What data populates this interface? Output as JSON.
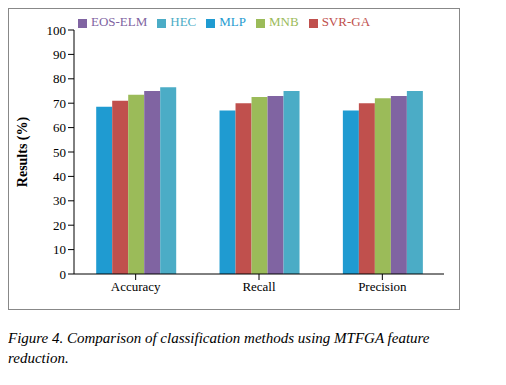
{
  "chart_data": {
    "type": "bar",
    "title": "Figure 4. Comparison of classification methods using MTFGA feature reduction.",
    "y_label": "Results (%)",
    "categories": [
      "Accuracy",
      "Recall",
      "Precision"
    ],
    "series": [
      {
        "name": "MLP",
        "color": "#1f9bd1",
        "values": [
          68.5,
          67,
          67
        ]
      },
      {
        "name": "SVR-GA",
        "color": "#c0504d",
        "values": [
          71,
          70,
          70
        ]
      },
      {
        "name": "MNB",
        "color": "#9bbb59",
        "values": [
          73.5,
          72.5,
          72
        ]
      },
      {
        "name": "EOS-ELM",
        "color": "#8064a2",
        "values": [
          75,
          73,
          73
        ]
      },
      {
        "name": "HEC",
        "color": "#4bacc6",
        "values": [
          76.5,
          75,
          75
        ]
      }
    ],
    "ylim": [
      0,
      100
    ],
    "yticks": [
      0,
      10,
      20,
      30,
      40,
      50,
      60,
      70,
      80,
      90,
      100
    ],
    "grid": false,
    "legend": "top"
  }
}
